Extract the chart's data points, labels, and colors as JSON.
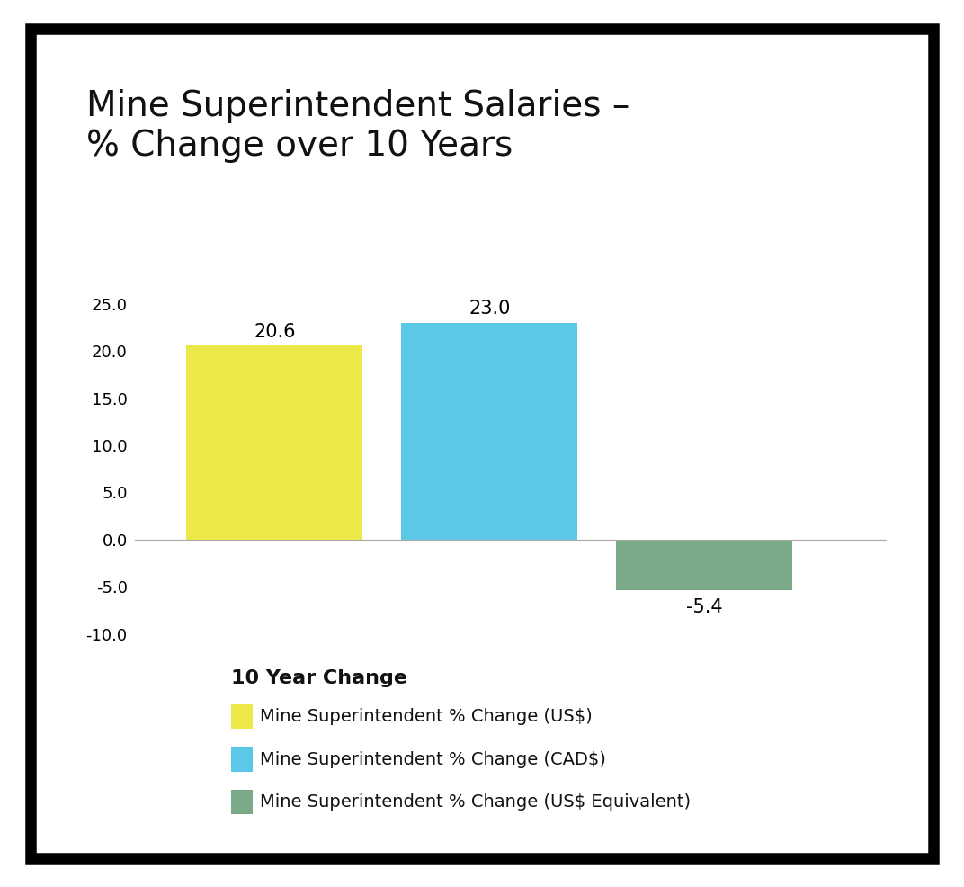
{
  "title": "Mine Superintendent Salaries –\n% Change over 10 Years",
  "values": [
    20.6,
    23.0,
    -5.4
  ],
  "bar_colors": [
    "#ede84a",
    "#5bc8e8",
    "#7aaa88"
  ],
  "bar_positions": [
    1,
    2,
    3
  ],
  "ylim": [
    -10.5,
    29.0
  ],
  "yticks": [
    -10.0,
    -5.0,
    0.0,
    5.0,
    10.0,
    15.0,
    20.0,
    25.0
  ],
  "legend_title": "10 Year Change",
  "legend_labels": [
    "Mine Superintendent % Change (US$)",
    "Mine Superintendent % Change (CAD$)",
    "Mine Superintendent % Change (US$ Equivalent)"
  ],
  "legend_colors": [
    "#ede84a",
    "#5bc8e8",
    "#7aaa88"
  ],
  "title_fontsize": 28,
  "label_fontsize": 15,
  "legend_fontsize": 14,
  "legend_title_fontsize": 16,
  "background_color": "#ffffff",
  "border_color": "#000000",
  "bar_width": 0.82
}
